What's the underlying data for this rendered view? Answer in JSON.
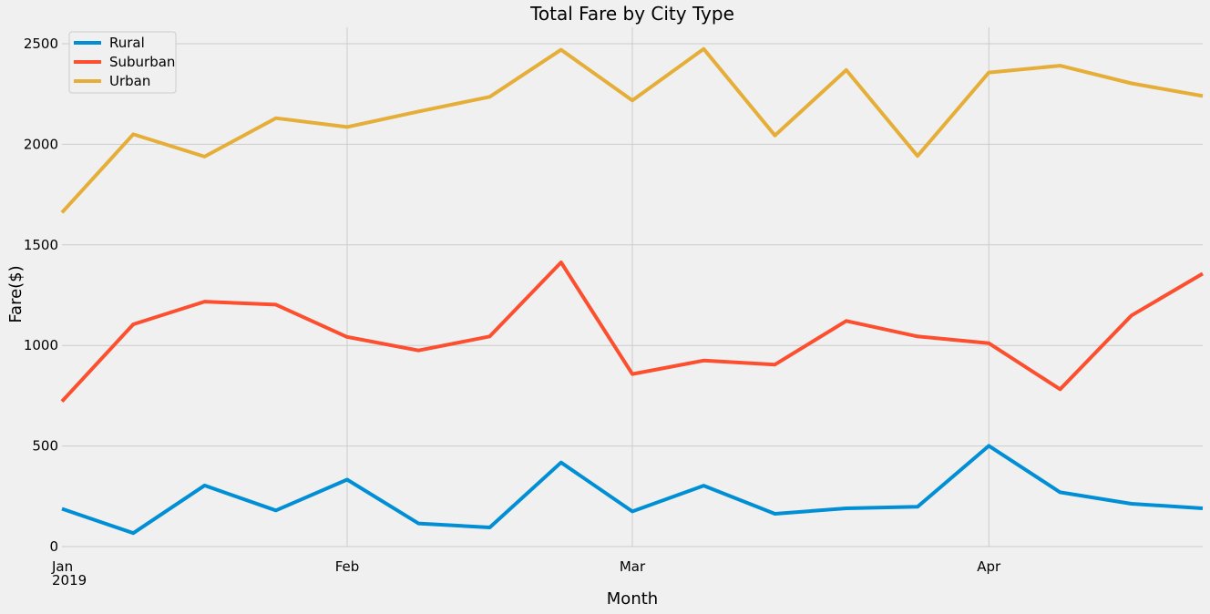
{
  "chart_data": {
    "type": "line",
    "title": "Total Fare by City Type",
    "xlabel": "Month",
    "ylabel": "Fare($)",
    "ylim": [
      -50,
      2580
    ],
    "yticks": [
      0,
      500,
      1000,
      1500,
      2000,
      2500
    ],
    "xticks": [
      {
        "label": "Jan",
        "sublabel": "2019",
        "index": 0
      },
      {
        "label": "Feb",
        "index": 4
      },
      {
        "label": "Mar",
        "index": 8
      },
      {
        "label": "Apr",
        "index": 13
      }
    ],
    "x_count": 17,
    "legend_position": "top-left",
    "series": [
      {
        "name": "Rural",
        "color": "#008fd5",
        "values": [
          188,
          67,
          304,
          180,
          333,
          115,
          95,
          418,
          175,
          303,
          163,
          190,
          198,
          501,
          270,
          213,
          190
        ]
      },
      {
        "name": "Suburban",
        "color": "#fc4f30",
        "values": [
          722,
          1105,
          1218,
          1203,
          1042,
          975,
          1045,
          1413,
          858,
          925,
          905,
          1122,
          1045,
          1011,
          782,
          1149,
          1357
        ]
      },
      {
        "name": "Urban",
        "color": "#e5ae38",
        "values": [
          1661,
          2050,
          1939,
          2130,
          2086,
          2163,
          2236,
          2470,
          2218,
          2474,
          2044,
          2369,
          1942,
          2357,
          2391,
          2303,
          2240
        ]
      }
    ]
  }
}
